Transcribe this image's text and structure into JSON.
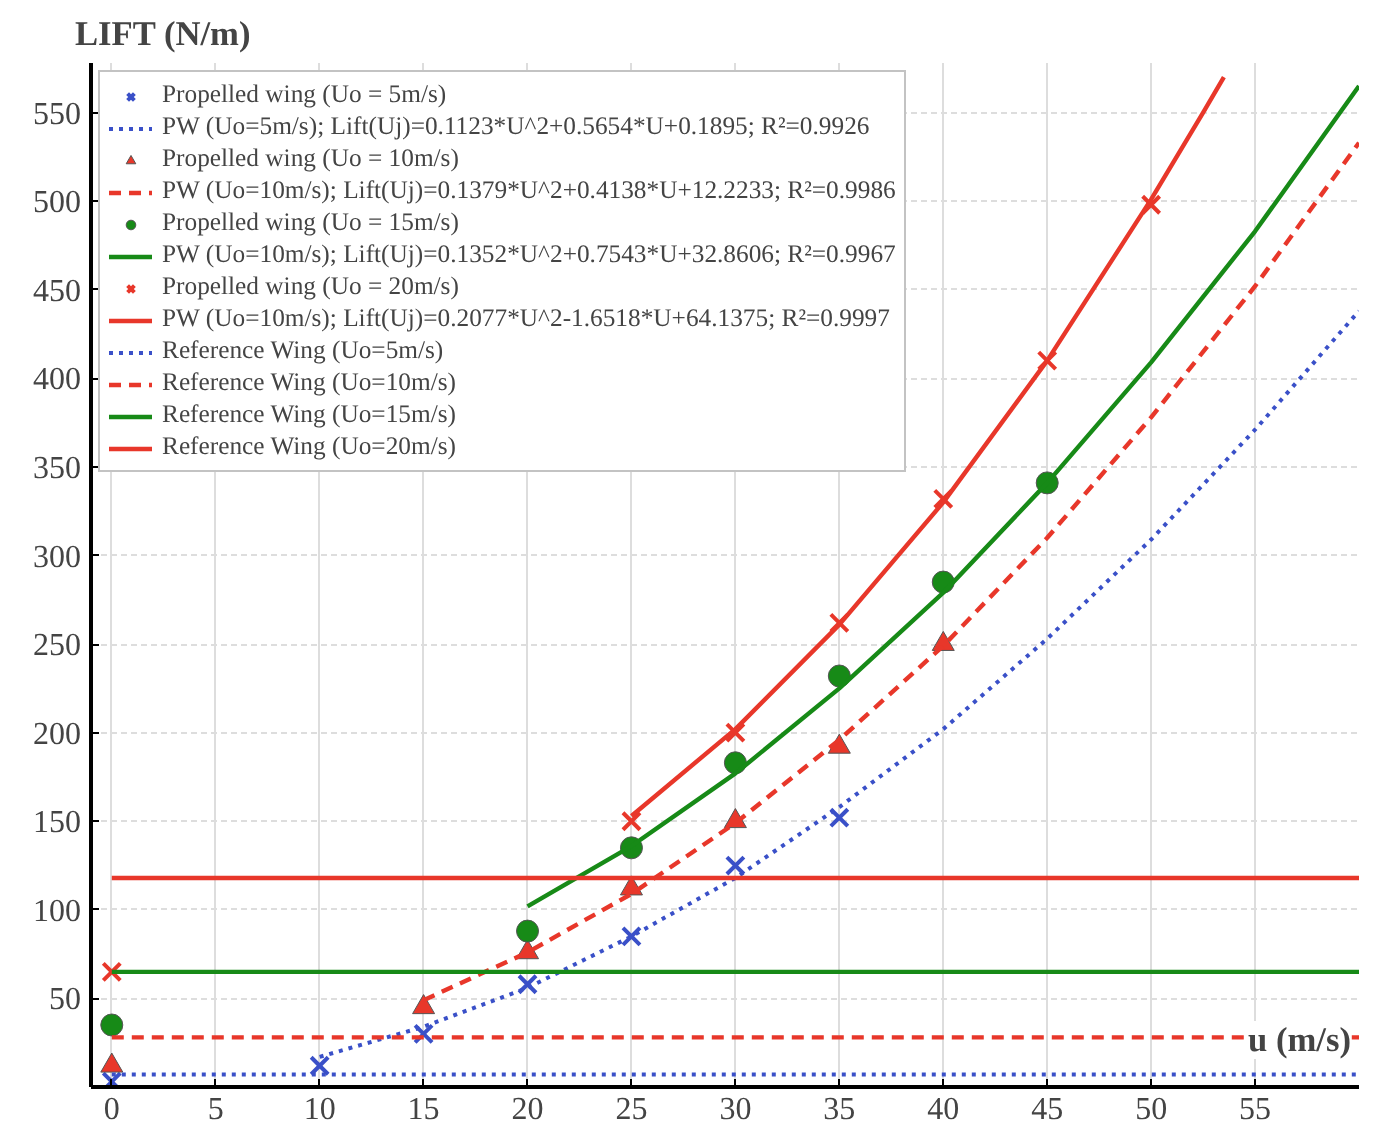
{
  "chart_data": {
    "type": "line",
    "xlabel": "u (m/s)",
    "ylabel": "LIFT (N/m)",
    "xlim": [
      -1,
      60
    ],
    "ylim": [
      0,
      578
    ],
    "xticks": [
      0,
      5,
      10,
      15,
      20,
      25,
      30,
      35,
      40,
      45,
      50,
      55
    ],
    "yticks": [
      50,
      100,
      150,
      200,
      250,
      300,
      350,
      400,
      450,
      500,
      550
    ],
    "grid": true,
    "legend": "top left",
    "series": [
      {
        "name": "Propelled wing (Uo = 5m/s)",
        "type": "scatter",
        "marker": "cross",
        "color": "#3a50c8",
        "x": [
          0,
          10,
          15,
          20,
          25,
          30,
          35
        ],
        "values": [
          3,
          12,
          30,
          58,
          85,
          125,
          152
        ]
      },
      {
        "name": "PW (Uo=5m/s); Lift(Uj)=0.1123*U^2+0.5654*U+0.1895; R²=0.9926",
        "line_style": "dotted",
        "color": "#3a50c8",
        "x": [
          10,
          15,
          20,
          25,
          30,
          35,
          40,
          45,
          50,
          55,
          60
        ],
        "values": [
          17,
          34,
          56,
          85,
          118,
          158,
          202,
          253,
          309,
          371,
          438
        ]
      },
      {
        "name": "Propelled wing (Uo = 10m/s)",
        "type": "scatter",
        "marker": "triangle",
        "color": "#e8372a",
        "x": [
          0,
          15,
          20,
          25,
          30,
          35,
          40
        ],
        "values": [
          12,
          45,
          76,
          112,
          150,
          192,
          250
        ]
      },
      {
        "name": "PW (Uo=10m/s); Lift(Uj)=0.1379*U^2+0.4138*U+12.2233; R²=0.9986",
        "line_style": "dashed",
        "color": "#e8372a",
        "x": [
          15,
          20,
          25,
          30,
          35,
          40,
          45,
          50,
          55,
          60
        ],
        "values": [
          49,
          76,
          109,
          149,
          196,
          249,
          310,
          378,
          452,
          533
        ]
      },
      {
        "name": "Propelled wing (Uo = 15m/s)",
        "type": "scatter",
        "marker": "circle",
        "color": "#178a17",
        "x": [
          0,
          20,
          25,
          30,
          35,
          40,
          45
        ],
        "values": [
          35,
          88,
          135,
          183,
          232,
          285,
          341
        ]
      },
      {
        "name": "PW (Uo=10m/s); Lift(Uj)=0.1352*U^2+0.7543*U+32.8606; R²=0.9967",
        "line_style": "solid",
        "color": "#178a17",
        "x": [
          20,
          25,
          30,
          35,
          40,
          45,
          50,
          55,
          60
        ],
        "values": [
          102,
          136,
          177,
          225,
          279,
          341,
          409,
          483,
          565
        ]
      },
      {
        "name": "Propelled wing (Uo = 20m/s)",
        "type": "scatter",
        "marker": "cross",
        "color": "#e8372a",
        "x": [
          0,
          25,
          30,
          35,
          40,
          45,
          50
        ],
        "values": [
          65,
          150,
          200,
          262,
          332,
          410,
          498
        ]
      },
      {
        "name": "PW (Uo=10m/s); Lift(Uj)=0.2077*U^2-1.6518*U+64.1375; R²=0.9997",
        "line_style": "solid",
        "color": "#e8372a",
        "x": [
          25,
          30,
          35,
          40,
          45,
          50,
          52.5,
          53.5
        ],
        "values": [
          153,
          202,
          261,
          330,
          410,
          501,
          550,
          570
        ]
      },
      {
        "name": "Reference Wing (Uo=5m/s)",
        "line_style": "dotted",
        "color": "#3a50c8",
        "x": [
          0,
          60
        ],
        "values": [
          7,
          7
        ]
      },
      {
        "name": "Reference Wing (Uo=10m/s)",
        "line_style": "dashed",
        "color": "#e8372a",
        "x": [
          0,
          60
        ],
        "values": [
          28,
          28
        ]
      },
      {
        "name": "Reference Wing (Uo=15m/s)",
        "line_style": "solid",
        "color": "#178a17",
        "x": [
          0,
          60
        ],
        "values": [
          65,
          65
        ]
      },
      {
        "name": "Reference Wing (Uo=20m/s)",
        "line_style": "solid",
        "color": "#e8372a",
        "x": [
          0,
          60
        ],
        "values": [
          118,
          118
        ]
      }
    ]
  }
}
